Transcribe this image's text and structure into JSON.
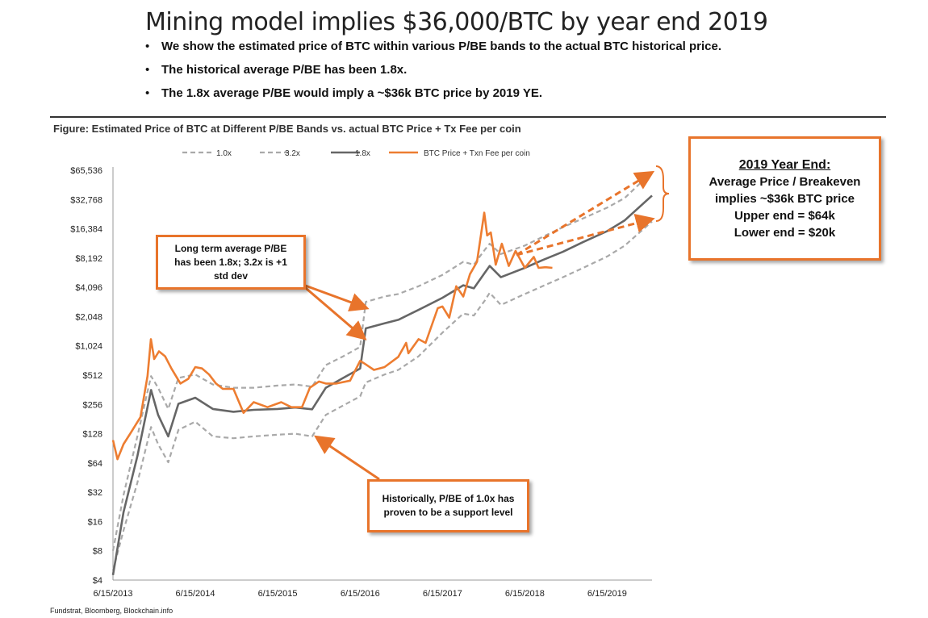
{
  "title": "Mining model implies $36,000/BTC by year end 2019",
  "bullets": [
    "We show the estimated price of BTC within various P/BE bands to the actual BTC historical price.",
    "The historical average P/BE has been 1.8x.",
    "The 1.8x average P/BE would imply a ~$36k BTC price by 2019 YE."
  ],
  "figure_caption": "Figure: Estimated Price of BTC at Different P/BE Bands vs. actual BTC Price + Tx Fee per coin",
  "source": "Fundstrat, Bloomberg, Blockchain.info",
  "colors": {
    "orange": "#ED7D31",
    "dark_gray": "#666666",
    "light_gray": "#A9A9A9",
    "callout_border": "#E8742B"
  },
  "callouts": {
    "average": [
      "Long term average P/BE",
      "has been 1.8x; 3.2x is +1",
      "std dev"
    ],
    "support": [
      "Historically, P/BE of 1.0x has",
      "proven to be a support level"
    ],
    "year_end": {
      "heading": "2019 Year End:",
      "lines": [
        "Average Price / Breakeven",
        "implies ~$36k BTC price",
        "Upper end = $64k",
        "Lower end = $20k"
      ]
    }
  },
  "chart_data": {
    "type": "line",
    "y_scale": "log2",
    "ylim": [
      4,
      65536
    ],
    "xlim": [
      "2013-06-15",
      "2019-12-31"
    ],
    "y_ticks": [
      "$4",
      "$8",
      "$16",
      "$32",
      "$64",
      "$128",
      "$256",
      "$512",
      "$1,024",
      "$2,048",
      "$4,096",
      "$8,192",
      "$16,384",
      "$32,768",
      "$65,536"
    ],
    "x_ticks": [
      "6/15/2013",
      "6/15/2014",
      "6/15/2015",
      "6/15/2016",
      "6/15/2017",
      "6/15/2018",
      "6/15/2019"
    ],
    "legend_position": "top",
    "series": [
      {
        "name": "1.0x",
        "style": "dashed-light-gray",
        "points": [
          [
            "2013-06-15",
            5
          ],
          [
            "2013-08-01",
            13
          ],
          [
            "2013-10-01",
            40
          ],
          [
            "2013-12-01",
            150
          ],
          [
            "2014-01-01",
            100
          ],
          [
            "2014-02-15",
            65
          ],
          [
            "2014-04-01",
            140
          ],
          [
            "2014-06-15",
            170
          ],
          [
            "2014-09-01",
            120
          ],
          [
            "2014-12-01",
            115
          ],
          [
            "2015-03-01",
            120
          ],
          [
            "2015-06-15",
            125
          ],
          [
            "2015-09-01",
            128
          ],
          [
            "2015-11-15",
            120
          ],
          [
            "2016-01-15",
            200
          ],
          [
            "2016-04-01",
            250
          ],
          [
            "2016-06-15",
            310
          ],
          [
            "2016-07-10",
            430
          ],
          [
            "2016-10-01",
            520
          ],
          [
            "2016-12-01",
            580
          ],
          [
            "2017-03-01",
            800
          ],
          [
            "2017-06-15",
            1400
          ],
          [
            "2017-09-15",
            2200
          ],
          [
            "2017-11-01",
            2100
          ],
          [
            "2017-12-20",
            3000
          ],
          [
            "2018-01-10",
            3600
          ],
          [
            "2018-03-01",
            2700
          ],
          [
            "2018-06-15",
            3500
          ],
          [
            "2018-09-01",
            4200
          ],
          [
            "2018-12-01",
            5200
          ],
          [
            "2019-03-01",
            6500
          ],
          [
            "2019-06-15",
            8500
          ],
          [
            "2019-09-01",
            11000
          ],
          [
            "2019-12-31",
            19500
          ]
        ]
      },
      {
        "name": "3.2x",
        "style": "dashed-light-gray",
        "points": [
          [
            "2013-06-15",
            8
          ],
          [
            "2013-08-01",
            30
          ],
          [
            "2013-10-01",
            120
          ],
          [
            "2013-12-01",
            500
          ],
          [
            "2014-01-01",
            380
          ],
          [
            "2014-02-15",
            230
          ],
          [
            "2014-04-01",
            480
          ],
          [
            "2014-06-15",
            520
          ],
          [
            "2014-09-01",
            410
          ],
          [
            "2014-12-01",
            380
          ],
          [
            "2015-03-01",
            380
          ],
          [
            "2015-06-15",
            400
          ],
          [
            "2015-09-01",
            410
          ],
          [
            "2015-11-15",
            390
          ],
          [
            "2016-01-15",
            650
          ],
          [
            "2016-04-01",
            800
          ],
          [
            "2016-06-15",
            1000
          ],
          [
            "2016-07-10",
            2900
          ],
          [
            "2016-10-01",
            3300
          ],
          [
            "2016-12-01",
            3500
          ],
          [
            "2017-03-01",
            4200
          ],
          [
            "2017-06-15",
            5500
          ],
          [
            "2017-09-15",
            7500
          ],
          [
            "2017-11-01",
            7000
          ],
          [
            "2017-12-20",
            10000
          ],
          [
            "2018-01-10",
            11500
          ],
          [
            "2018-03-01",
            9000
          ],
          [
            "2018-06-15",
            11000
          ],
          [
            "2018-09-01",
            13500
          ],
          [
            "2018-12-01",
            17000
          ],
          [
            "2019-03-01",
            21000
          ],
          [
            "2019-06-15",
            27000
          ],
          [
            "2019-09-01",
            34000
          ],
          [
            "2019-12-31",
            63000
          ]
        ]
      },
      {
        "name": "1.8x",
        "style": "solid-dark-gray",
        "points": [
          [
            "2013-06-15",
            4.5
          ],
          [
            "2013-08-01",
            20
          ],
          [
            "2013-10-01",
            75
          ],
          [
            "2013-12-01",
            360
          ],
          [
            "2014-01-01",
            200
          ],
          [
            "2014-02-15",
            120
          ],
          [
            "2014-04-01",
            260
          ],
          [
            "2014-06-15",
            300
          ],
          [
            "2014-09-01",
            230
          ],
          [
            "2014-12-01",
            215
          ],
          [
            "2015-03-01",
            225
          ],
          [
            "2015-06-15",
            230
          ],
          [
            "2015-09-01",
            238
          ],
          [
            "2015-11-15",
            228
          ],
          [
            "2016-01-15",
            380
          ],
          [
            "2016-04-01",
            480
          ],
          [
            "2016-06-15",
            600
          ],
          [
            "2016-07-10",
            1550
          ],
          [
            "2016-10-01",
            1750
          ],
          [
            "2016-12-01",
            1900
          ],
          [
            "2017-03-01",
            2400
          ],
          [
            "2017-06-15",
            3200
          ],
          [
            "2017-09-15",
            4300
          ],
          [
            "2017-11-01",
            4000
          ],
          [
            "2017-12-20",
            5800
          ],
          [
            "2018-01-10",
            6800
          ],
          [
            "2018-03-01",
            5200
          ],
          [
            "2018-06-15",
            6500
          ],
          [
            "2018-09-01",
            7800
          ],
          [
            "2018-12-01",
            9500
          ],
          [
            "2019-03-01",
            12000
          ],
          [
            "2019-06-15",
            15500
          ],
          [
            "2019-09-01",
            20000
          ],
          [
            "2019-12-31",
            36000
          ]
        ]
      },
      {
        "name": "BTC Price + Txn Fee per coin",
        "style": "solid-orange",
        "points": [
          [
            "2013-06-15",
            110
          ],
          [
            "2013-07-05",
            70
          ],
          [
            "2013-08-01",
            100
          ],
          [
            "2013-09-01",
            130
          ],
          [
            "2013-10-15",
            190
          ],
          [
            "2013-11-15",
            500
          ],
          [
            "2013-11-30",
            1200
          ],
          [
            "2013-12-15",
            750
          ],
          [
            "2014-01-05",
            900
          ],
          [
            "2014-02-01",
            800
          ],
          [
            "2014-03-01",
            600
          ],
          [
            "2014-04-10",
            420
          ],
          [
            "2014-05-15",
            470
          ],
          [
            "2014-06-15",
            620
          ],
          [
            "2014-07-15",
            600
          ],
          [
            "2014-08-15",
            520
          ],
          [
            "2014-09-15",
            420
          ],
          [
            "2014-10-15",
            370
          ],
          [
            "2014-12-01",
            370
          ],
          [
            "2015-01-15",
            210
          ],
          [
            "2015-03-01",
            270
          ],
          [
            "2015-05-01",
            240
          ],
          [
            "2015-07-01",
            270
          ],
          [
            "2015-08-15",
            240
          ],
          [
            "2015-10-01",
            240
          ],
          [
            "2015-11-05",
            380
          ],
          [
            "2015-12-15",
            440
          ],
          [
            "2016-01-15",
            420
          ],
          [
            "2016-03-01",
            420
          ],
          [
            "2016-05-01",
            450
          ],
          [
            "2016-06-15",
            720
          ],
          [
            "2016-07-10",
            660
          ],
          [
            "2016-08-15",
            580
          ],
          [
            "2016-10-01",
            620
          ],
          [
            "2016-12-01",
            790
          ],
          [
            "2017-01-05",
            1100
          ],
          [
            "2017-01-15",
            860
          ],
          [
            "2017-03-01",
            1200
          ],
          [
            "2017-04-01",
            1100
          ],
          [
            "2017-05-25",
            2500
          ],
          [
            "2017-06-15",
            2600
          ],
          [
            "2017-07-15",
            2000
          ],
          [
            "2017-08-15",
            4200
          ],
          [
            "2017-09-15",
            3300
          ],
          [
            "2017-10-15",
            5600
          ],
          [
            "2017-11-15",
            7500
          ],
          [
            "2017-12-17",
            24000
          ],
          [
            "2017-12-30",
            14000
          ],
          [
            "2018-01-15",
            15000
          ],
          [
            "2018-02-06",
            7000
          ],
          [
            "2018-03-05",
            11500
          ],
          [
            "2018-04-05",
            6800
          ],
          [
            "2018-05-05",
            9700
          ],
          [
            "2018-06-15",
            6500
          ],
          [
            "2018-07-25",
            8400
          ],
          [
            "2018-08-15",
            6500
          ],
          [
            "2018-09-15",
            6600
          ],
          [
            "2018-10-15",
            6500
          ]
        ]
      }
    ]
  }
}
